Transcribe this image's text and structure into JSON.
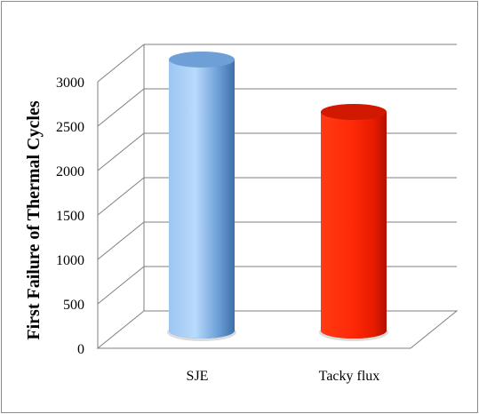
{
  "chart_data": {
    "type": "bar",
    "style": "3d-cylinder",
    "title": "",
    "xlabel": "",
    "ylabel": "First Failure of Thermal Cycles",
    "categories": [
      "SJE",
      "Tacky flux"
    ],
    "values": [
      3050,
      2460
    ],
    "bar_colors": [
      "#6fa3dc",
      "#ff2200"
    ],
    "ylim": [
      0,
      3000
    ],
    "yticks": [
      "0",
      "500",
      "1000",
      "1500",
      "2000",
      "2500",
      "3000"
    ],
    "grid": true,
    "legend": "none"
  }
}
